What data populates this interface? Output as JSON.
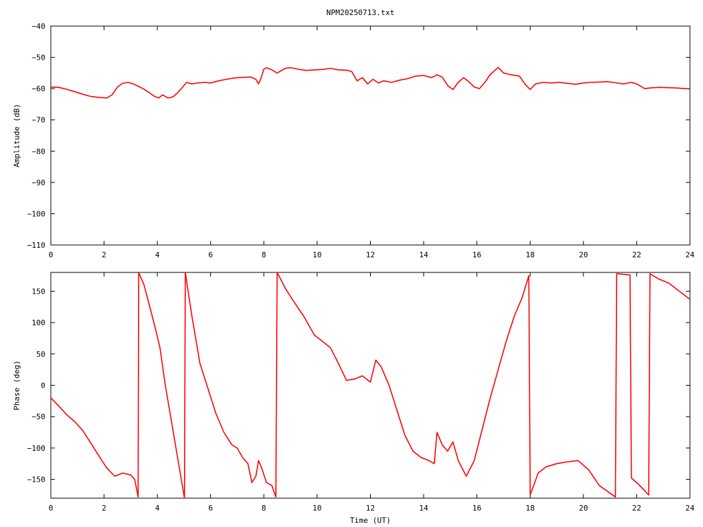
{
  "title": "NPM20250713.txt",
  "colors": {
    "series": "#ff0000",
    "axis": "#000000",
    "background": "#ffffff"
  },
  "chart_data": [
    {
      "type": "line",
      "title": "NPM20250713.txt",
      "xlabel": "",
      "ylabel": "Amplitude (dB)",
      "xlim": [
        0,
        24
      ],
      "ylim": [
        -110,
        -40
      ],
      "xticks": [
        0,
        2,
        4,
        6,
        8,
        10,
        12,
        14,
        16,
        18,
        20,
        22,
        24
      ],
      "yticks": [
        -110,
        -100,
        -90,
        -80,
        -70,
        -60,
        -50,
        -40
      ],
      "xtick_labels": [
        "0",
        "2",
        "4",
        "6",
        "8",
        "10",
        "12",
        "14",
        "16",
        "18",
        "20",
        "22",
        "24"
      ],
      "ytick_labels": [
        "−110",
        "−100",
        "−90",
        "−80",
        "−70",
        "−60",
        "−50",
        "−40"
      ],
      "grid": false,
      "series": [
        {
          "points": [
            [
              0,
              -59.5
            ],
            [
              0.3,
              -59.6
            ],
            [
              0.6,
              -60.2
            ],
            [
              0.9,
              -61.0
            ],
            [
              1.2,
              -61.8
            ],
            [
              1.5,
              -62.5
            ],
            [
              1.8,
              -62.8
            ],
            [
              2.1,
              -63.0
            ],
            [
              2.3,
              -62.0
            ],
            [
              2.5,
              -59.5
            ],
            [
              2.7,
              -58.3
            ],
            [
              2.9,
              -58.0
            ],
            [
              3.1,
              -58.5
            ],
            [
              3.3,
              -59.3
            ],
            [
              3.5,
              -60.2
            ],
            [
              3.7,
              -61.3
            ],
            [
              3.9,
              -62.5
            ],
            [
              4.05,
              -63.0
            ],
            [
              4.2,
              -62.0
            ],
            [
              4.4,
              -63.0
            ],
            [
              4.6,
              -62.6
            ],
            [
              4.8,
              -61.0
            ],
            [
              5.0,
              -59.0
            ],
            [
              5.1,
              -58.0
            ],
            [
              5.3,
              -58.5
            ],
            [
              5.5,
              -58.2
            ],
            [
              5.8,
              -58.0
            ],
            [
              6.0,
              -58.2
            ],
            [
              6.3,
              -57.5
            ],
            [
              6.6,
              -57.0
            ],
            [
              6.9,
              -56.6
            ],
            [
              7.2,
              -56.4
            ],
            [
              7.5,
              -56.3
            ],
            [
              7.7,
              -57.0
            ],
            [
              7.8,
              -58.5
            ],
            [
              7.9,
              -56.5
            ],
            [
              8.0,
              -53.8
            ],
            [
              8.1,
              -53.3
            ],
            [
              8.3,
              -54.0
            ],
            [
              8.5,
              -55.0
            ],
            [
              8.8,
              -53.5
            ],
            [
              9.0,
              -53.3
            ],
            [
              9.3,
              -53.8
            ],
            [
              9.6,
              -54.2
            ],
            [
              9.9,
              -54.0
            ],
            [
              10.2,
              -53.9
            ],
            [
              10.5,
              -53.5
            ],
            [
              10.8,
              -54.0
            ],
            [
              11.1,
              -54.1
            ],
            [
              11.3,
              -54.5
            ],
            [
              11.5,
              -57.5
            ],
            [
              11.7,
              -56.5
            ],
            [
              11.9,
              -58.5
            ],
            [
              12.1,
              -57.0
            ],
            [
              12.3,
              -58.2
            ],
            [
              12.5,
              -57.5
            ],
            [
              12.8,
              -58.0
            ],
            [
              13.1,
              -57.3
            ],
            [
              13.4,
              -56.8
            ],
            [
              13.7,
              -56.0
            ],
            [
              14.0,
              -55.8
            ],
            [
              14.3,
              -56.5
            ],
            [
              14.5,
              -55.6
            ],
            [
              14.7,
              -56.3
            ],
            [
              14.9,
              -59.0
            ],
            [
              15.1,
              -60.3
            ],
            [
              15.3,
              -58.0
            ],
            [
              15.5,
              -56.5
            ],
            [
              15.7,
              -57.8
            ],
            [
              15.9,
              -59.5
            ],
            [
              16.1,
              -60.0
            ],
            [
              16.3,
              -58.0
            ],
            [
              16.5,
              -55.5
            ],
            [
              16.8,
              -53.2
            ],
            [
              17.0,
              -55.0
            ],
            [
              17.3,
              -55.6
            ],
            [
              17.6,
              -56.0
            ],
            [
              17.8,
              -58.5
            ],
            [
              18.0,
              -60.3
            ],
            [
              18.2,
              -58.5
            ],
            [
              18.5,
              -58.0
            ],
            [
              18.8,
              -58.2
            ],
            [
              19.1,
              -58.0
            ],
            [
              19.4,
              -58.3
            ],
            [
              19.7,
              -58.6
            ],
            [
              20.0,
              -58.2
            ],
            [
              20.3,
              -58.0
            ],
            [
              20.6,
              -57.9
            ],
            [
              20.9,
              -57.8
            ],
            [
              21.2,
              -58.1
            ],
            [
              21.5,
              -58.5
            ],
            [
              21.8,
              -58.0
            ],
            [
              22.0,
              -58.5
            ],
            [
              22.3,
              -60.0
            ],
            [
              22.6,
              -59.7
            ],
            [
              22.9,
              -59.6
            ],
            [
              23.2,
              -59.7
            ],
            [
              23.5,
              -59.8
            ],
            [
              23.8,
              -60.0
            ],
            [
              24.0,
              -60.1
            ]
          ]
        }
      ]
    },
    {
      "type": "line",
      "title": "",
      "xlabel": "Time (UT)",
      "ylabel": "Phase (deg)",
      "xlim": [
        0,
        24
      ],
      "ylim": [
        -180,
        180
      ],
      "xticks": [
        0,
        2,
        4,
        6,
        8,
        10,
        12,
        14,
        16,
        18,
        20,
        22,
        24
      ],
      "yticks": [
        -150,
        -100,
        -50,
        0,
        50,
        100,
        150
      ],
      "xtick_labels": [
        "0",
        "2",
        "4",
        "6",
        "8",
        "10",
        "12",
        "14",
        "16",
        "18",
        "20",
        "22",
        "24"
      ],
      "ytick_labels": [
        "−150",
        "−100",
        "−50",
        "0",
        "50",
        "100",
        "150"
      ],
      "grid": false,
      "series": [
        {
          "points": [
            [
              0,
              -20
            ],
            [
              0.3,
              -33
            ],
            [
              0.6,
              -47
            ],
            [
              0.9,
              -58
            ],
            [
              1.2,
              -72
            ],
            [
              1.5,
              -92
            ],
            [
              1.8,
              -112
            ],
            [
              2.1,
              -132
            ],
            [
              2.4,
              -145
            ],
            [
              2.7,
              -140
            ],
            [
              3.0,
              -143
            ],
            [
              3.15,
              -150
            ],
            [
              3.28,
              -178
            ],
            [
              3.3,
              180
            ],
            [
              3.5,
              160
            ],
            [
              3.7,
              128
            ],
            [
              3.9,
              95
            ],
            [
              4.1,
              60
            ],
            [
              4.3,
              0
            ],
            [
              4.5,
              -50
            ],
            [
              4.7,
              -100
            ],
            [
              4.9,
              -150
            ],
            [
              5.02,
              -180
            ],
            [
              5.05,
              180
            ],
            [
              5.3,
              110
            ],
            [
              5.6,
              35
            ],
            [
              5.9,
              -5
            ],
            [
              6.2,
              -45
            ],
            [
              6.5,
              -75
            ],
            [
              6.8,
              -95
            ],
            [
              7.0,
              -100
            ],
            [
              7.2,
              -115
            ],
            [
              7.4,
              -125
            ],
            [
              7.55,
              -155
            ],
            [
              7.7,
              -145
            ],
            [
              7.8,
              -120
            ],
            [
              7.9,
              -130
            ],
            [
              8.1,
              -155
            ],
            [
              8.3,
              -160
            ],
            [
              8.45,
              -178
            ],
            [
              8.5,
              180
            ],
            [
              8.8,
              155
            ],
            [
              9.1,
              135
            ],
            [
              9.5,
              110
            ],
            [
              9.9,
              80
            ],
            [
              10.2,
              70
            ],
            [
              10.5,
              60
            ],
            [
              10.8,
              35
            ],
            [
              11.1,
              8
            ],
            [
              11.4,
              10
            ],
            [
              11.7,
              15
            ],
            [
              12.0,
              5
            ],
            [
              12.2,
              40
            ],
            [
              12.4,
              30
            ],
            [
              12.7,
              0
            ],
            [
              13.0,
              -40
            ],
            [
              13.3,
              -80
            ],
            [
              13.6,
              -105
            ],
            [
              13.9,
              -115
            ],
            [
              14.2,
              -120
            ],
            [
              14.4,
              -125
            ],
            [
              14.5,
              -75
            ],
            [
              14.7,
              -95
            ],
            [
              14.9,
              -105
            ],
            [
              15.1,
              -90
            ],
            [
              15.3,
              -120
            ],
            [
              15.6,
              -145
            ],
            [
              15.9,
              -120
            ],
            [
              16.2,
              -70
            ],
            [
              16.5,
              -20
            ],
            [
              16.8,
              25
            ],
            [
              17.1,
              70
            ],
            [
              17.4,
              110
            ],
            [
              17.7,
              140
            ],
            [
              17.95,
              175
            ],
            [
              18.0,
              -175
            ],
            [
              18.3,
              -140
            ],
            [
              18.6,
              -130
            ],
            [
              19.0,
              -125
            ],
            [
              19.4,
              -122
            ],
            [
              19.8,
              -120
            ],
            [
              20.2,
              -135
            ],
            [
              20.6,
              -160
            ],
            [
              21.0,
              -172
            ],
            [
              21.2,
              -178
            ],
            [
              21.25,
              178
            ],
            [
              21.5,
              177
            ],
            [
              21.75,
              176
            ],
            [
              21.8,
              -148
            ],
            [
              22.0,
              -155
            ],
            [
              22.3,
              -168
            ],
            [
              22.45,
              -175
            ],
            [
              22.5,
              178
            ],
            [
              22.8,
              170
            ],
            [
              23.2,
              163
            ],
            [
              23.6,
              150
            ],
            [
              24.0,
              137
            ]
          ]
        }
      ]
    }
  ]
}
